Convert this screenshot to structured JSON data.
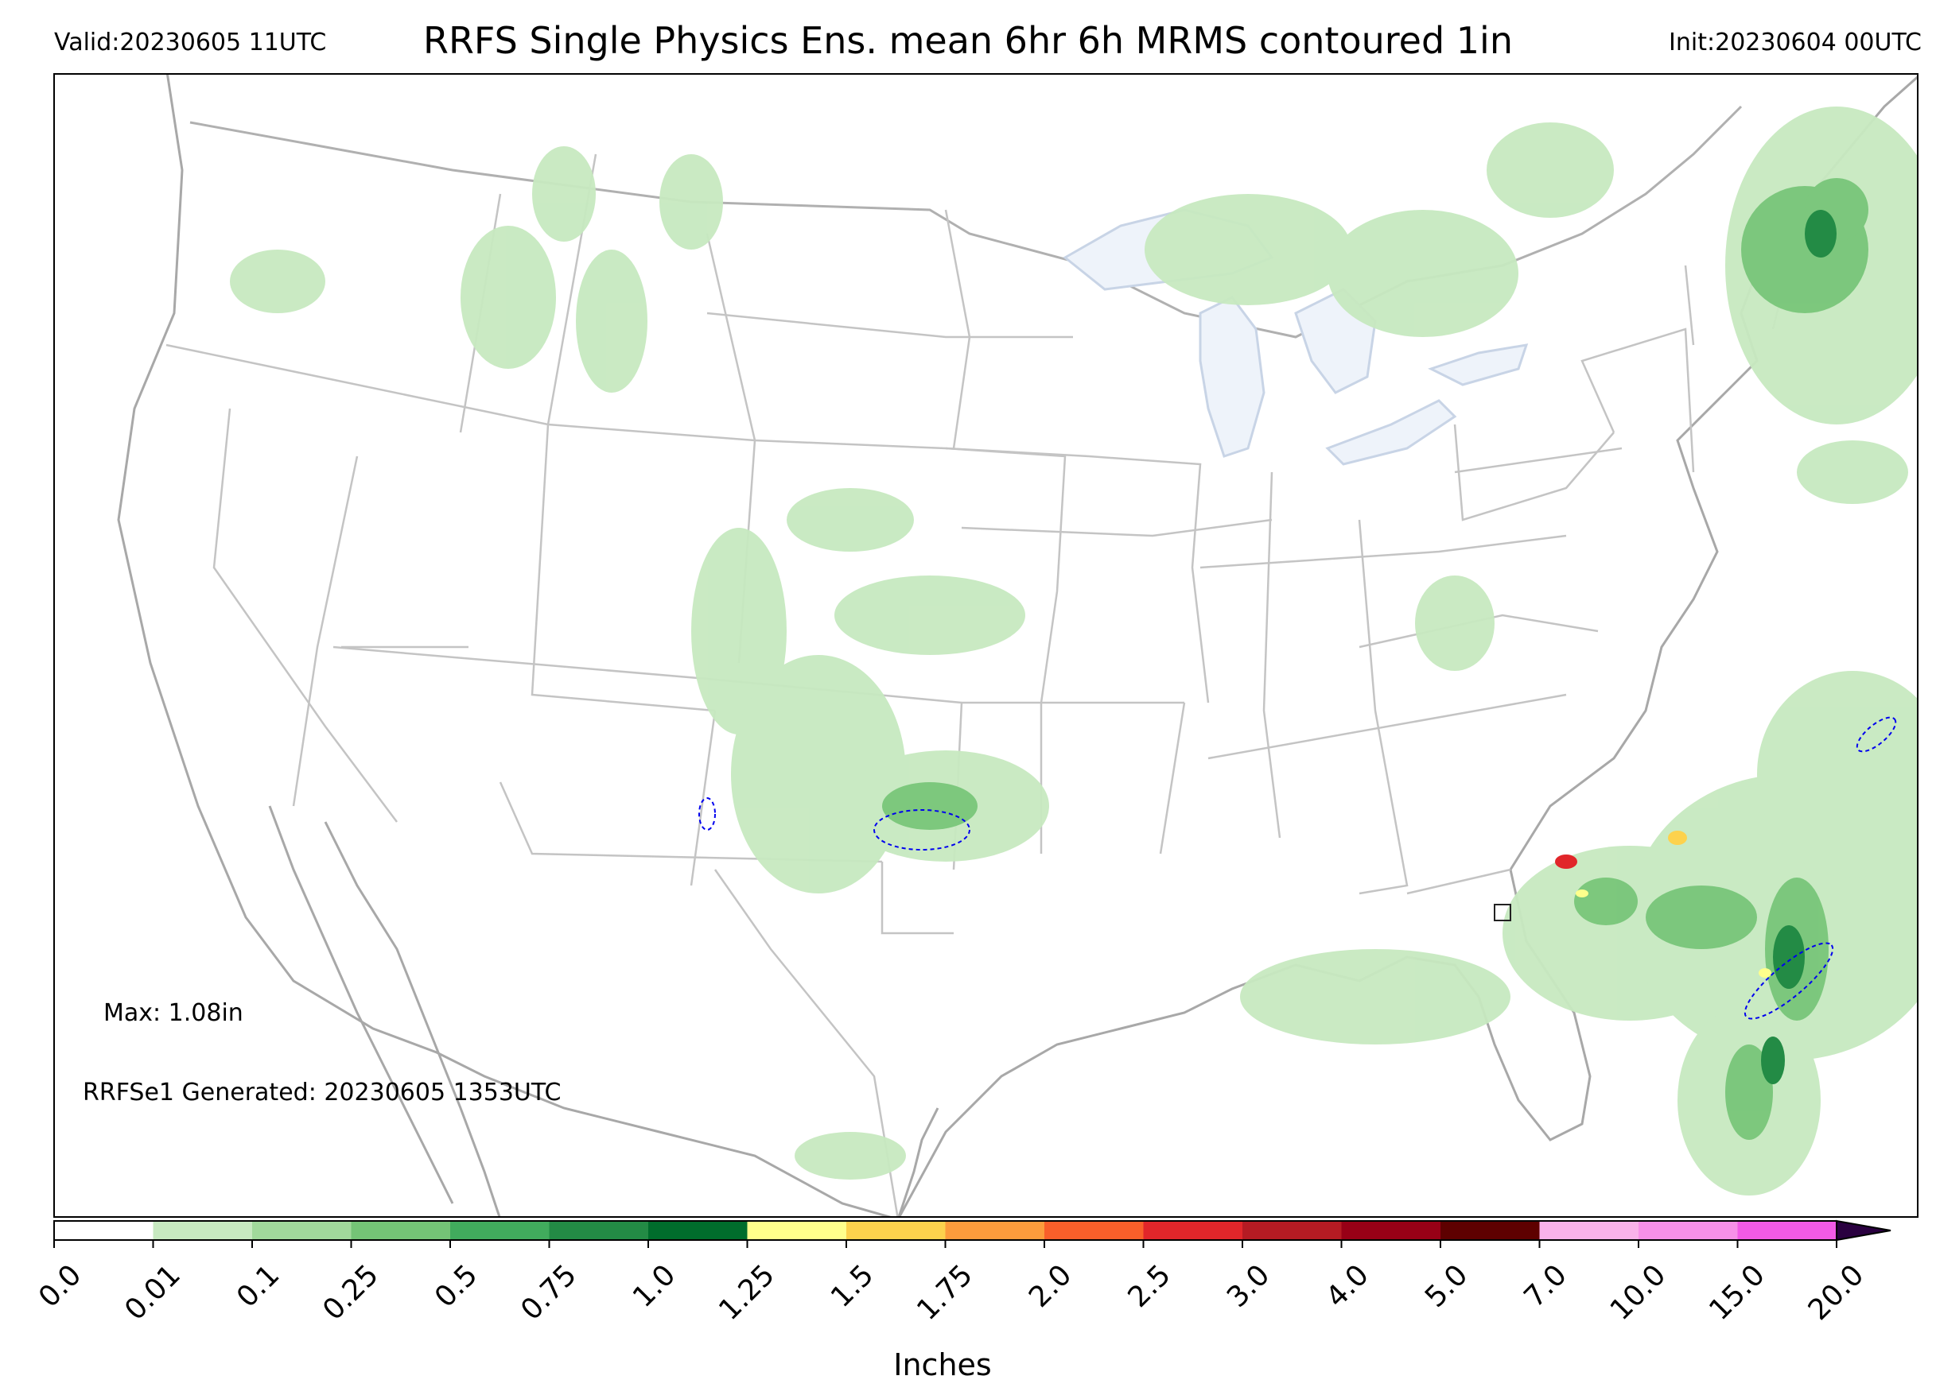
{
  "header": {
    "valid": "Valid:20230605 11UTC",
    "title": "RRFS Single Physics Ens. mean 6hr 6h MRMS contoured 1in",
    "init": "Init:20230604 00UTC"
  },
  "annotations": {
    "max": "Max: 1.08in",
    "generated": "RRFSe1 Generated: 20230605 1353UTC"
  },
  "colorbar": {
    "units_label": "Inches",
    "extend": "max",
    "tick_labels": [
      "0.0",
      "0.01",
      "0.1",
      "0.25",
      "0.5",
      "0.75",
      "1.0",
      "1.25",
      "1.5",
      "1.75",
      "2.0",
      "2.5",
      "3.0",
      "4.0",
      "5.0",
      "7.0",
      "10.0",
      "15.0",
      "20.0"
    ],
    "colors": [
      "#ffffff",
      "#c7e9c0",
      "#a1d99b",
      "#74c476",
      "#41ab5d",
      "#238b45",
      "#006d2c",
      "#ffff8c",
      "#fdd24d",
      "#fd9c3c",
      "#f95f2a",
      "#e1262a",
      "#b51b23",
      "#980016",
      "#5e0000",
      "#f9b2ea",
      "#f790e8",
      "#f25ae6",
      "#e01be0",
      "#c40ad4",
      "#8a12b8"
    ],
    "arrow_color": "#2a0040"
  },
  "map": {
    "projection": "Lambert Conformal CONUS",
    "boundaries_color": "#bdbdbd",
    "coast_color": "#a0a0a0",
    "lake_fill": "#eef3fa",
    "contour_color": "#0000ee"
  }
}
